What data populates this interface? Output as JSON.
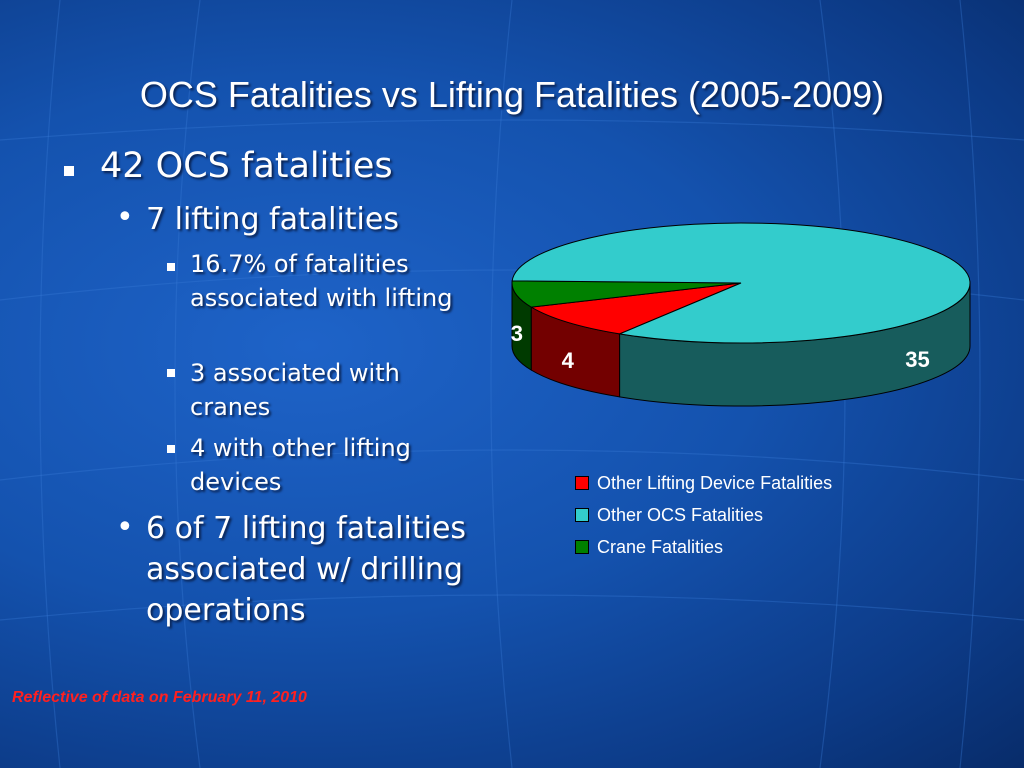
{
  "slide": {
    "title": "OCS Fatalities vs Lifting Fatalities (2005-2009)",
    "bullets": {
      "l1": "42 OCS fatalities",
      "l2a": "7 lifting fatalities",
      "l3a": "16.7% of fatalities associated with lifting",
      "l3b": "3 associated with cranes",
      "l3c": "4 with other lifting devices",
      "l2b": "6 of 7 lifting fatalities associated w/ drilling operations"
    },
    "footnote": "Reflective of data on February 11, 2010"
  },
  "chart_data": {
    "type": "pie",
    "title": "",
    "slices": [
      {
        "name": "Other Lifting Device Fatalities",
        "value": 4,
        "color": "#ff0000",
        "label": "4"
      },
      {
        "name": "Crane Fatalities",
        "value": 3,
        "color": "#008000",
        "label": "3"
      },
      {
        "name": "Other OCS Fatalities",
        "value": 35,
        "color": "#33cccc",
        "label": "35"
      }
    ],
    "legend": {
      "placement": "bottom",
      "entries": [
        "Other Lifting Device Fatalities",
        "Other OCS Fatalities",
        "Crane Fatalities"
      ],
      "colors": [
        "#ff0000",
        "#33cccc",
        "#008000"
      ]
    }
  }
}
